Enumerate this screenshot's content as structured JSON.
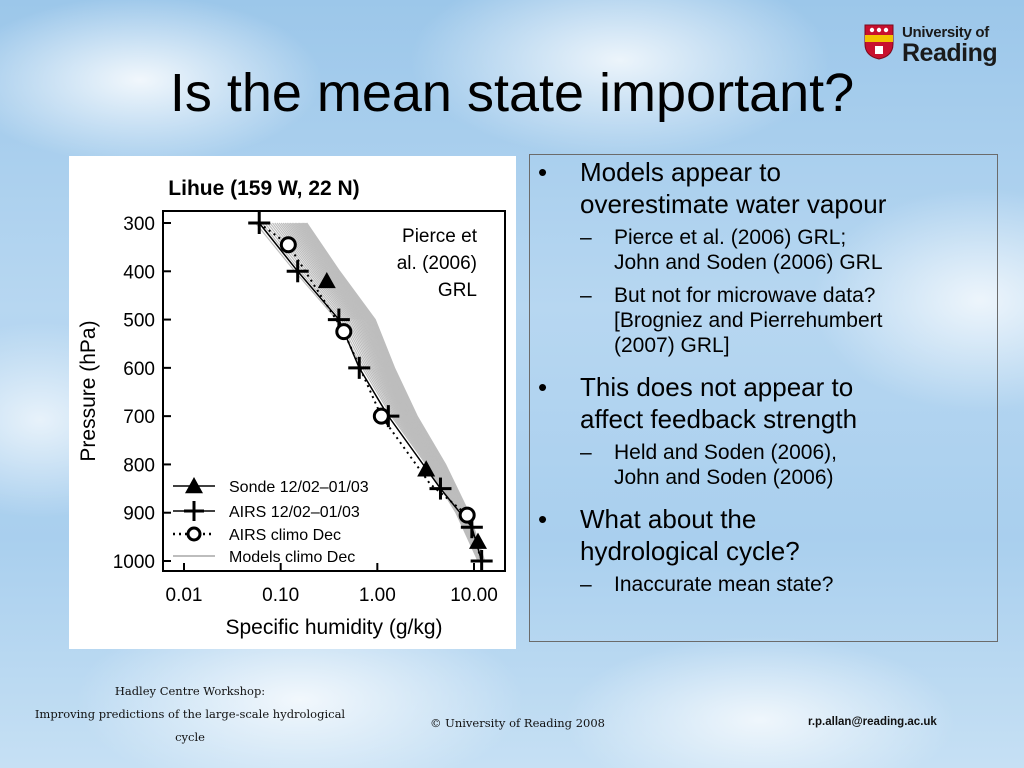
{
  "logo": {
    "line1": "University of",
    "line2": "Reading"
  },
  "title": "Is the mean state important?",
  "figure": {
    "chart_title": "Lihue (159 W, 22 N)",
    "annotation": [
      "Pierce et",
      "al. (2006)",
      "GRL"
    ],
    "chart_data": {
      "type": "line",
      "title": "Lihue (159 W, 22 N)",
      "xlabel": "Specific humidity (g/kg)",
      "ylabel": "Pressure (hPa)",
      "x_scale": "log",
      "xlim": [
        0.01,
        10.0
      ],
      "ylim": [
        1000,
        300
      ],
      "x_ticks": [
        "0.01",
        "0.10",
        "1.00",
        "10.00"
      ],
      "y_ticks": [
        "300",
        "400",
        "500",
        "600",
        "700",
        "800",
        "900",
        "1000"
      ],
      "legend_position": "bottom-left",
      "series": [
        {
          "name": "Sonde 12/02–01/03",
          "marker": "triangle",
          "points": [
            [
              0.3,
              420
            ],
            [
              3.2,
              810
            ],
            [
              11.0,
              960
            ]
          ]
        },
        {
          "name": "AIRS 12/02–01/03",
          "marker": "plus",
          "points": [
            [
              0.06,
              300
            ],
            [
              0.15,
              400
            ],
            [
              0.4,
              500
            ],
            [
              0.65,
              600
            ],
            [
              1.3,
              700
            ],
            [
              4.5,
              850
            ],
            [
              9.5,
              930
            ],
            [
              12.0,
              1000
            ]
          ]
        },
        {
          "name": "AIRS climo Dec",
          "marker": "circle",
          "points": [
            [
              0.12,
              345
            ],
            [
              0.45,
              525
            ],
            [
              1.1,
              700
            ],
            [
              8.5,
              905
            ]
          ]
        },
        {
          "name": "Models climo Dec",
          "marker": "none",
          "color": "#bdbdbd"
        }
      ]
    }
  },
  "bullets": [
    {
      "text": [
        "Models appear to",
        "overestimate water vapour"
      ],
      "subs": [
        {
          "text": [
            "Pierce et al. (2006) GRL;",
            "John and Soden (2006) GRL"
          ]
        },
        {
          "text": [
            "But not for microwave data?",
            "[Brogniez and Pierrehumbert",
            "(2007) GRL]"
          ]
        }
      ]
    },
    {
      "text": [
        "This does not appear to",
        "affect feedback strength"
      ],
      "subs": [
        {
          "text": [
            "Held and Soden (2006),",
            "John and Soden (2006)"
          ]
        }
      ]
    },
    {
      "text": [
        "What about the",
        "hydrological cycle?"
      ],
      "subs": [
        {
          "text": [
            "Inaccurate mean state?"
          ]
        }
      ]
    }
  ],
  "footer": {
    "left": [
      "Hadley Centre Workshop:",
      "Improving predictions of the large-scale hydrological",
      "cycle"
    ],
    "center": "© University of Reading 2008",
    "right": "r.p.allan@reading.ac.uk"
  },
  "colors": {
    "background_sky": "#a9cfee",
    "box_border": "#6b6b6b",
    "models_line": "#bdbdbd",
    "logo_red": "#c8102e"
  }
}
